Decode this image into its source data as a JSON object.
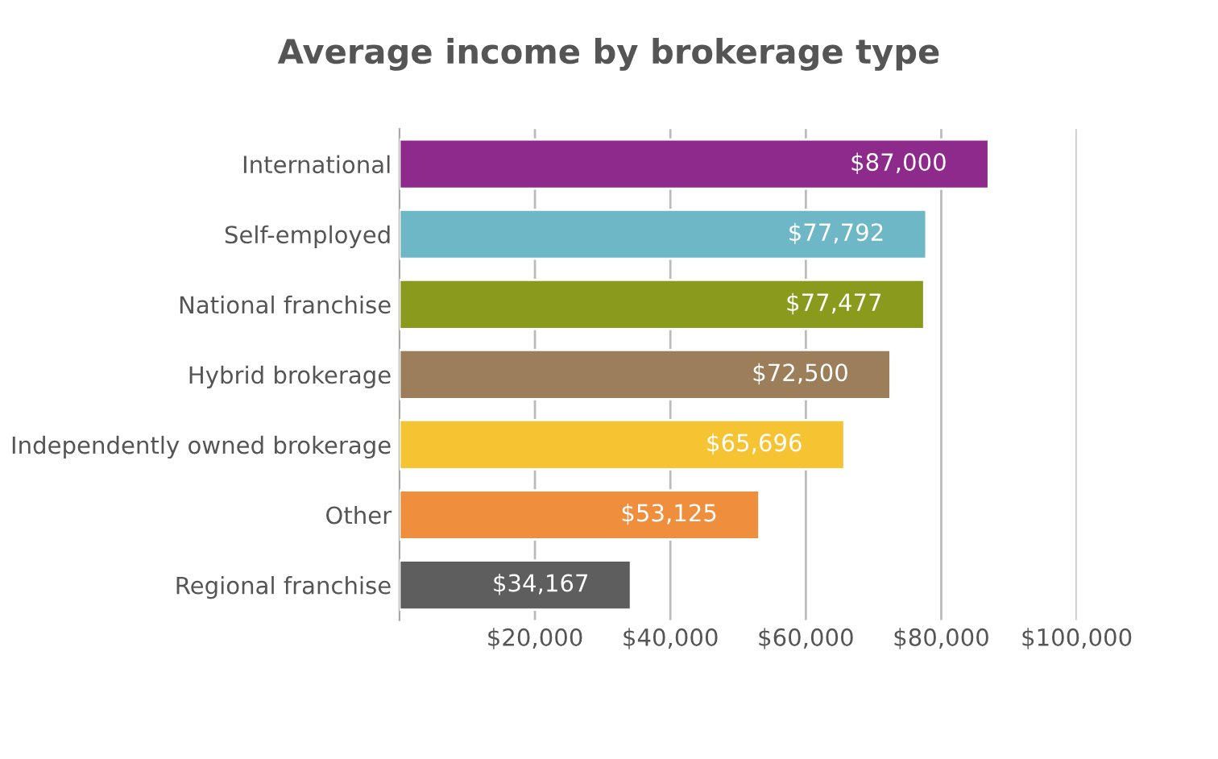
{
  "chart_data": {
    "type": "bar",
    "orientation": "horizontal",
    "title": "Average income by brokerage type",
    "categories": [
      "International",
      "Self-employed",
      "National franchise",
      "Hybrid brokerage",
      "Independently owned brokerage",
      "Other",
      "Regional franchise"
    ],
    "values": [
      87000,
      77792,
      77477,
      72500,
      65696,
      53125,
      34167
    ],
    "value_labels": [
      "$87,000",
      "$77,792",
      "$77,477",
      "$72,500",
      "$65,696",
      "$53,125",
      "$34,167"
    ],
    "colors": [
      "#8e2a8b",
      "#6db7c6",
      "#899a1d",
      "#9c7e5a",
      "#f6c332",
      "#ef8f3d",
      "#5e5e5e"
    ],
    "xlim": [
      0,
      100000
    ],
    "xticks": [
      {
        "value": 20000,
        "label": "$20,000"
      },
      {
        "value": 40000,
        "label": "$40,000"
      },
      {
        "value": 60000,
        "label": "$60,000"
      },
      {
        "value": 80000,
        "label": "$80,000"
      },
      {
        "value": 100000,
        "label": "$100,000"
      }
    ],
    "grid": "x"
  }
}
